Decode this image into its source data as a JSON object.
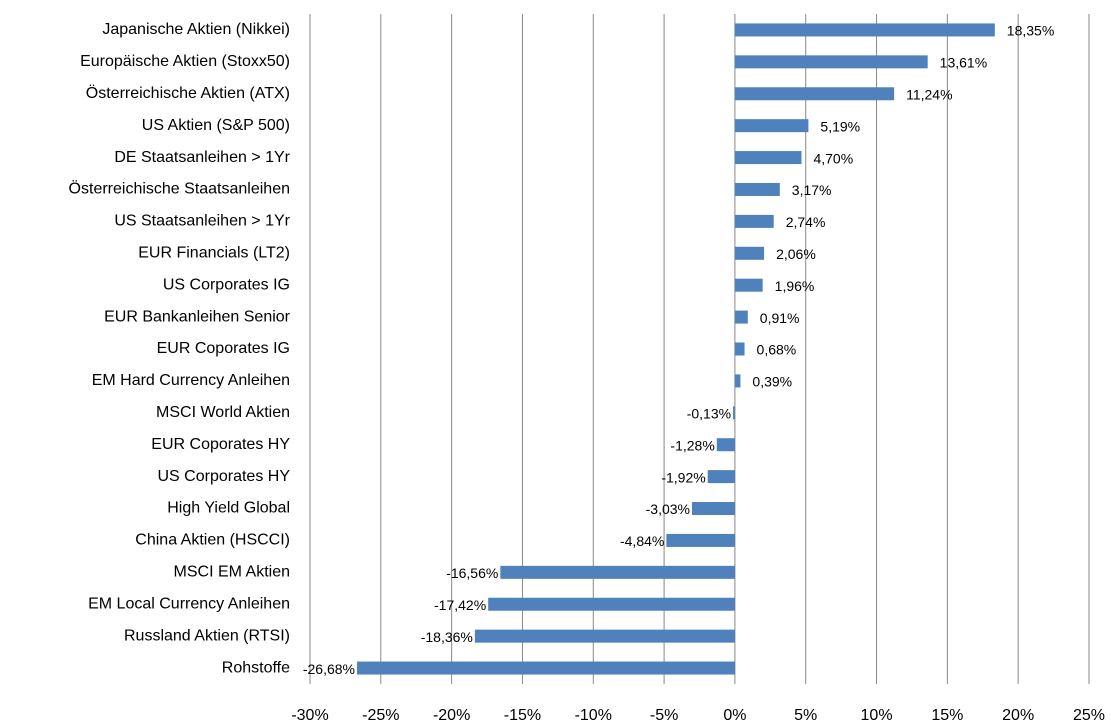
{
  "chart_data": {
    "type": "bar",
    "orientation": "horizontal",
    "color": "#4f81bd",
    "grid": true,
    "categories": [
      "Japanische Aktien (Nikkei)",
      "Europäische Aktien (Stoxx50)",
      "Österreichische Aktien (ATX)",
      "US Aktien (S&P 500)",
      "DE Staatsanleihen > 1Yr",
      "Österreichische Staatsanleihen",
      "US Staatsanleihen > 1Yr",
      "EUR Financials (LT2)",
      "US Corporates IG",
      "EUR Bankanleihen Senior",
      "EUR Coporates IG ",
      "EM Hard Currency Anleihen",
      "MSCI World Aktien",
      "EUR Coporates HY",
      "US Corporates HY",
      "High Yield Global",
      "China Aktien (HSCCI)",
      "MSCI EM Aktien",
      "EM Local Currency Anleihen",
      "Russland Aktien (RTSI)",
      "Rohstoffe"
    ],
    "values": [
      18.35,
      13.61,
      11.24,
      5.19,
      4.7,
      3.17,
      2.74,
      2.06,
      1.96,
      0.91,
      0.68,
      0.39,
      -0.13,
      -1.28,
      -1.92,
      -3.03,
      -4.84,
      -16.56,
      -17.42,
      -18.36,
      -26.68
    ],
    "value_labels": [
      "18,35%",
      "13,61%",
      "11,24%",
      "5,19%",
      "4,70%",
      "3,17%",
      "2,74%",
      "2,06%",
      "1,96%",
      "0,91%",
      "0,68%",
      "0,39%",
      "-0,13%",
      "-1,28%",
      "-1,92%",
      "-3,03%",
      "-4,84%",
      "-16,56%",
      "-17,42%",
      "-18,36%",
      "-26,68%"
    ],
    "xlim": [
      -30,
      25
    ],
    "xticks": [
      {
        "value": -30,
        "label": "-30%"
      },
      {
        "value": -25,
        "label": "-25%"
      },
      {
        "value": -20,
        "label": "-20%"
      },
      {
        "value": -15,
        "label": "-15%"
      },
      {
        "value": -10,
        "label": "-10%"
      },
      {
        "value": -5,
        "label": "-5%"
      },
      {
        "value": 0,
        "label": "0%"
      },
      {
        "value": 5,
        "label": "5%"
      },
      {
        "value": 10,
        "label": "10%"
      },
      {
        "value": 15,
        "label": "15%"
      },
      {
        "value": 20,
        "label": "20%"
      },
      {
        "value": 25,
        "label": "25%"
      }
    ]
  }
}
